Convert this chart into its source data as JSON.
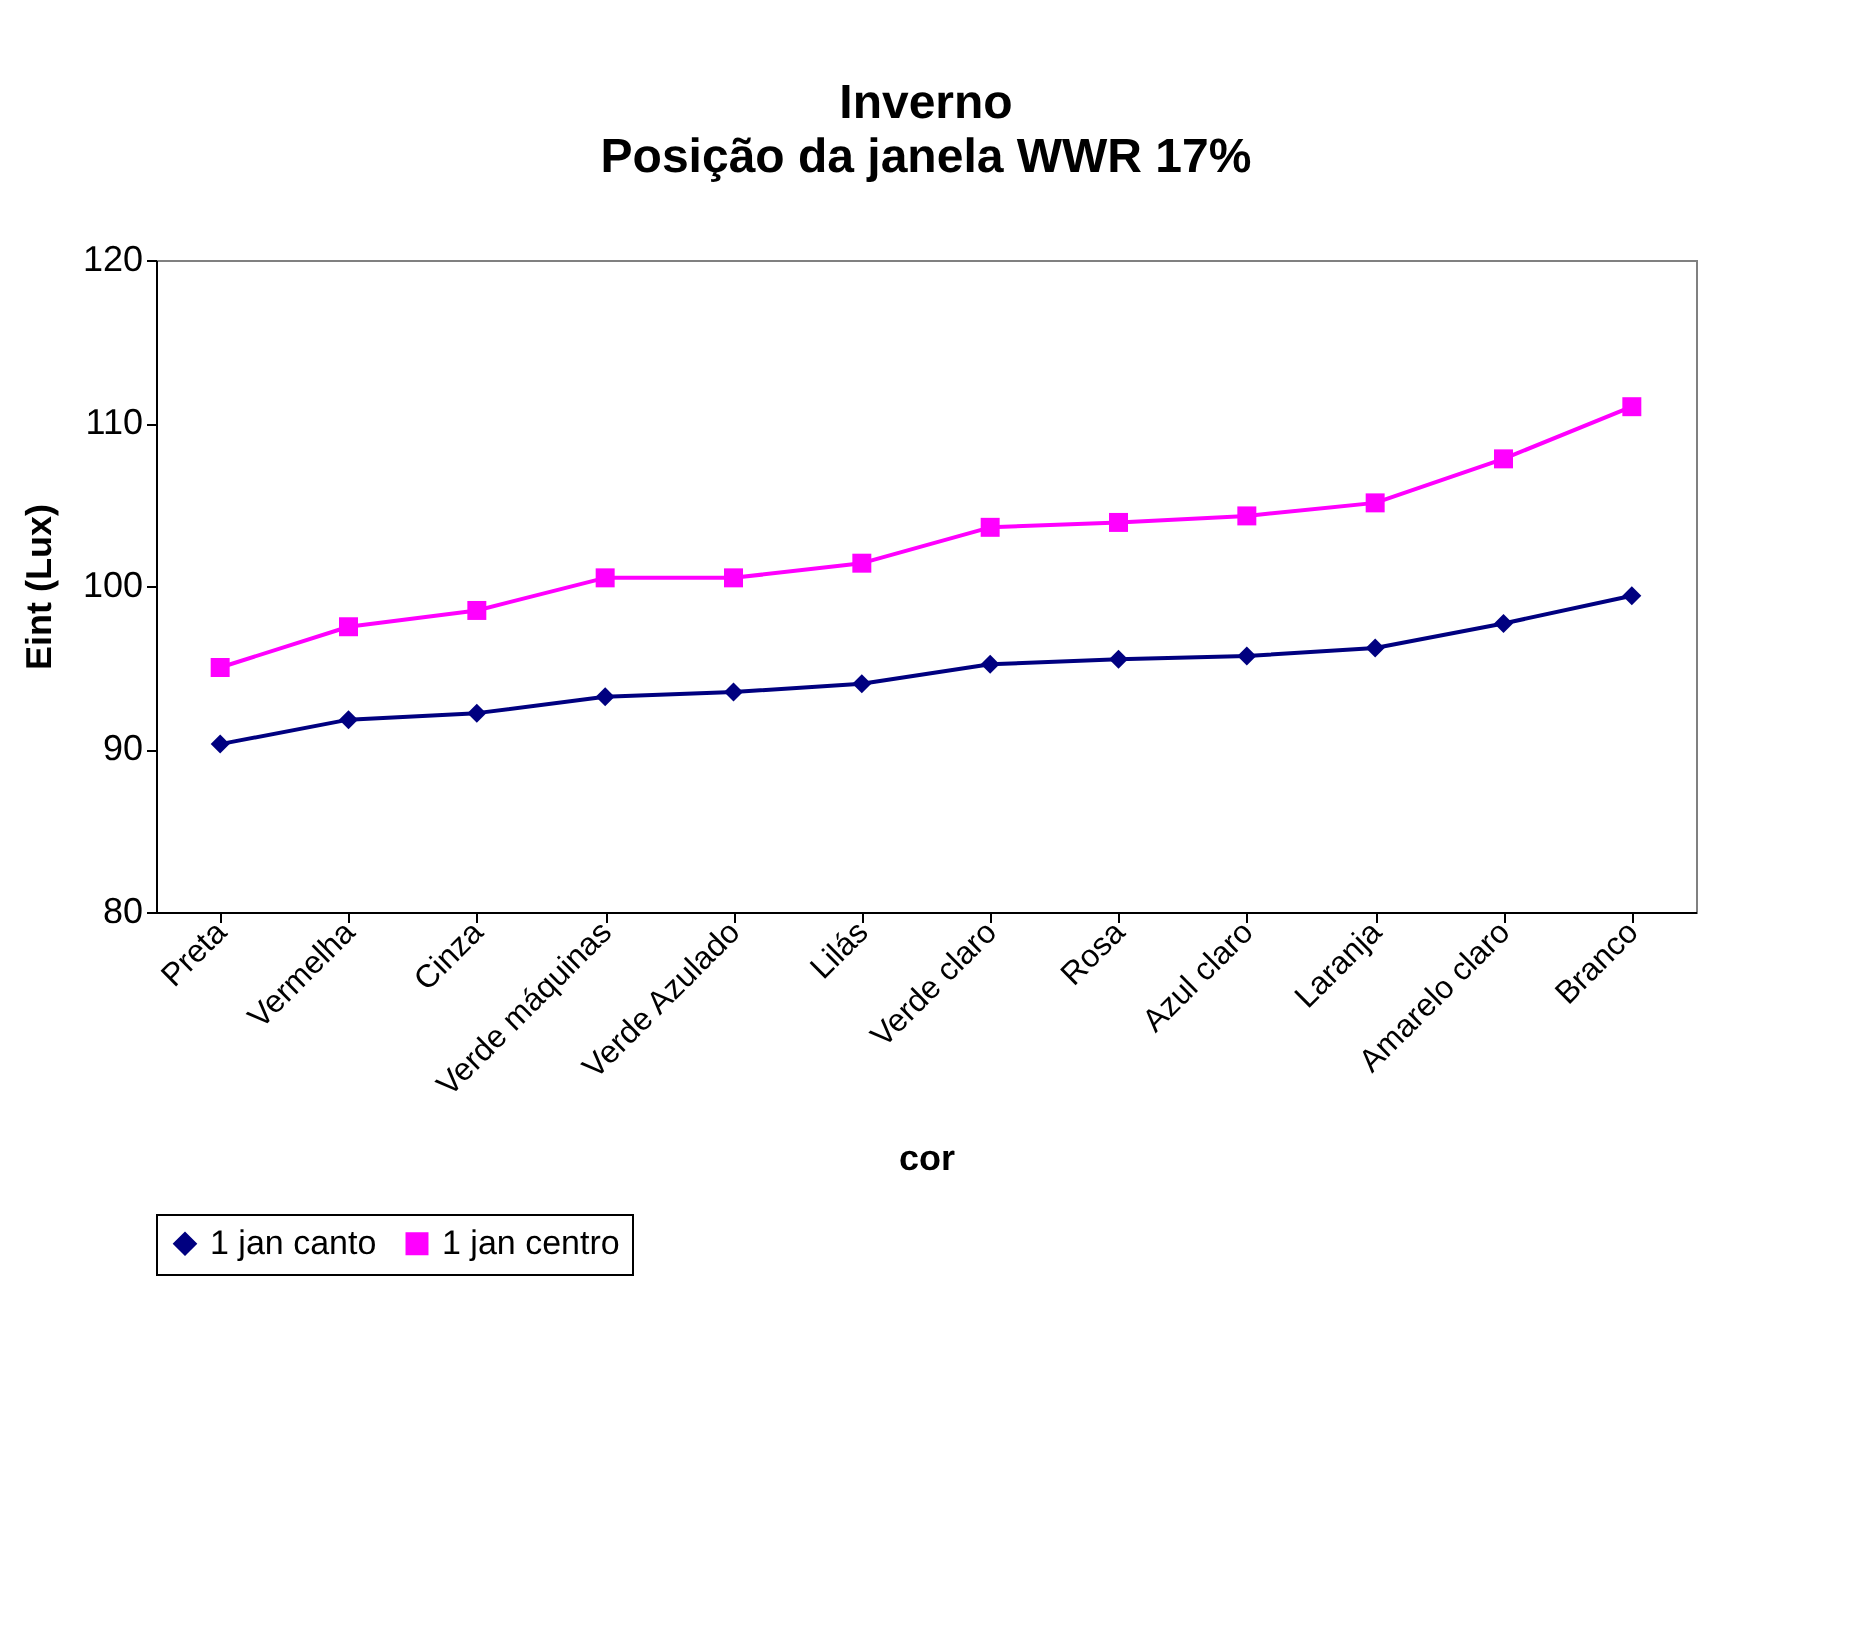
{
  "chart_data": {
    "type": "line",
    "title": "Inverno",
    "subtitle": "Posição da janela WWR 17%",
    "xlabel": "cor",
    "ylabel": "Eint (Lux)",
    "categories": [
      "Preta",
      "Vermelha",
      "Cinza",
      "Verde máquinas",
      "Verde Azulado",
      "Lilás",
      "Verde claro",
      "Rosa",
      "Azul claro",
      "Laranja",
      "Amarelo claro",
      "Branco"
    ],
    "series": [
      {
        "name": "1 jan canto",
        "color": "#000080",
        "marker": "diamond",
        "values": [
          90.3,
          91.8,
          92.2,
          93.2,
          93.5,
          94.0,
          95.2,
          95.5,
          95.7,
          96.2,
          97.7,
          99.4
        ]
      },
      {
        "name": "1 jan centro",
        "color": "#ff00ff",
        "marker": "square",
        "values": [
          95.0,
          97.5,
          98.5,
          100.5,
          100.5,
          101.4,
          103.6,
          103.9,
          104.3,
          105.1,
          107.8,
          111.0
        ]
      }
    ],
    "ylim": [
      80,
      120
    ],
    "yticks": [
      80,
      90,
      100,
      110,
      120
    ],
    "grid": false,
    "legend": "bottom"
  }
}
